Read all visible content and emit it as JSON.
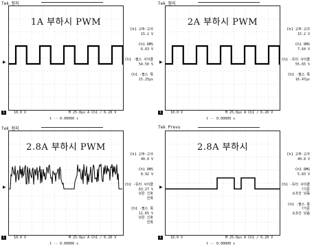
{
  "panels": [
    {
      "tek": "Tek 정지",
      "title": "1A 부하시 PWM",
      "side": [
        [
          "Ch1 고주-고크",
          "15.2 V"
        ],
        [
          "Ch1 RMS",
          "6.63 V"
        ],
        [
          "Ch1 -펄스 사이클",
          "54.50 %"
        ],
        [
          "Ch1 -펄스 폭",
          "15.25μs"
        ]
      ],
      "ch": "1",
      "volt": "10.0 V",
      "time": "M 25.0μs A Ch1 / 6.20 V",
      "cursor": "t -- 0.00000 s",
      "waveform": "pwm"
    },
    {
      "tek": "Tek 정지",
      "title": "2A 부하시 PWM",
      "side": [
        [
          "Ch1 고주-고크",
          "15.2 V"
        ],
        [
          "Ch1 RMS",
          "7.64 V"
        ],
        [
          "Ch1 -듀티 사이클",
          "55.65 %"
        ],
        [
          "Ch1 -펄스 폭",
          "16.47μs"
        ]
      ],
      "ch": "1",
      "volt": "10.0 V",
      "time": "M 25.0μs A Ch1 / 6.20 V",
      "cursor": "t -- 0.00000 s",
      "waveform": "pwm"
    },
    {
      "tek": "Tek 정지",
      "title": "2.8A 부하시 PWM",
      "side": [
        [
          "Ch1 고주-고크",
          "40.0 V"
        ],
        [
          "Ch1 RMS",
          "8.92 V"
        ],
        [
          "Ch1 -듀티 사이클",
          "63.27 %",
          "낮은 신호",
          "진폭"
        ],
        [
          "Ch1 -펄스 폭",
          "11.65 %",
          "낮은 신호",
          "진폭"
        ]
      ],
      "ch": "1",
      "volt": "10.0 V",
      "time": "M 25.0μs A Ch1 / 6.20 V",
      "cursor": "t -- 0.00000 s",
      "waveform": "noisy"
    },
    {
      "tek": "Tek Prevu",
      "title": "2.8A 부하시",
      "side": [
        [
          "Ch1 고주-고크",
          "40.8 V"
        ],
        [
          "Ch1 RMS",
          "5.83 V"
        ],
        [
          "Ch1 -듀티 사이클",
          "?기준",
          "소조건 낮음"
        ],
        [
          "Ch1 -펄스 폭",
          "?기준",
          "소조건 낮음"
        ]
      ],
      "ch": "1",
      "volt": "10.0 V",
      "time": "M 25.0μs A Ch1 / 6.20 V",
      "cursor": "t -- 0.00000 s",
      "waveform": "sparse"
    }
  ]
}
